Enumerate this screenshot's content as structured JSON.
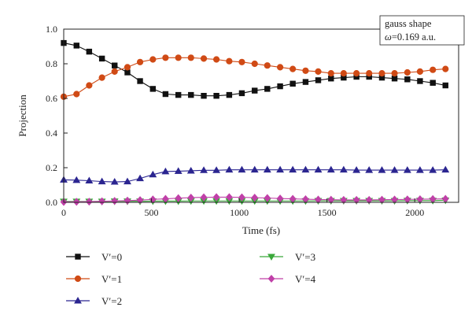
{
  "chart_data": {
    "type": "line",
    "xlabel": "Time (fs)",
    "ylabel": "Projection",
    "xlim": [
      0,
      2250
    ],
    "ylim": [
      0,
      1.0
    ],
    "xticks": [
      0,
      500,
      1000,
      1500,
      2000
    ],
    "xtick_labels": [
      "0",
      "500",
      "1000",
      "1500",
      "2000"
    ],
    "yticks": [
      0.0,
      0.2,
      0.4,
      0.6,
      0.8,
      1.0
    ],
    "ytick_labels": [
      "0.0",
      "0.2",
      "0.4",
      "0.6",
      "0.8",
      "1.0"
    ],
    "annotation": {
      "line1": "gauss shape",
      "line2_symbol": "ω",
      "line2_rest": "=0.169 a.u."
    },
    "legend_position": "below",
    "x": [
      0,
      73,
      145,
      218,
      290,
      363,
      435,
      508,
      580,
      653,
      725,
      798,
      870,
      943,
      1015,
      1088,
      1160,
      1233,
      1305,
      1378,
      1450,
      1523,
      1595,
      1668,
      1740,
      1813,
      1885,
      1958,
      2030,
      2103,
      2175
    ],
    "series": [
      {
        "name": "V′=0",
        "marker": "square",
        "color": "#111111",
        "values": [
          0.92,
          0.905,
          0.87,
          0.83,
          0.79,
          0.75,
          0.7,
          0.655,
          0.625,
          0.62,
          0.62,
          0.615,
          0.615,
          0.62,
          0.63,
          0.645,
          0.655,
          0.67,
          0.685,
          0.695,
          0.705,
          0.715,
          0.72,
          0.725,
          0.725,
          0.72,
          0.715,
          0.71,
          0.7,
          0.69,
          0.675
        ]
      },
      {
        "name": "V′=1",
        "marker": "circle",
        "color": "#d04a15",
        "values": [
          0.61,
          0.625,
          0.675,
          0.72,
          0.755,
          0.78,
          0.81,
          0.825,
          0.835,
          0.835,
          0.835,
          0.83,
          0.825,
          0.815,
          0.81,
          0.8,
          0.79,
          0.78,
          0.77,
          0.76,
          0.755,
          0.745,
          0.745,
          0.745,
          0.745,
          0.745,
          0.745,
          0.75,
          0.755,
          0.765,
          0.77
        ]
      },
      {
        "name": "V′=2",
        "marker": "triangle-up",
        "color": "#2b2590",
        "values": [
          0.13,
          0.128,
          0.125,
          0.12,
          0.118,
          0.12,
          0.138,
          0.16,
          0.178,
          0.18,
          0.182,
          0.185,
          0.185,
          0.188,
          0.188,
          0.188,
          0.188,
          0.188,
          0.188,
          0.188,
          0.188,
          0.188,
          0.188,
          0.186,
          0.186,
          0.186,
          0.186,
          0.186,
          0.186,
          0.186,
          0.188
        ]
      },
      {
        "name": "V′=3",
        "marker": "triangle-down",
        "color": "#3aa83a",
        "values": [
          0.005,
          0.005,
          0.005,
          0.005,
          0.006,
          0.006,
          0.006,
          0.007,
          0.007,
          0.007,
          0.008,
          0.008,
          0.008,
          0.008,
          0.008,
          0.008,
          0.008,
          0.008,
          0.008,
          0.008,
          0.009,
          0.009,
          0.009,
          0.009,
          0.009,
          0.009,
          0.009,
          0.01,
          0.01,
          0.01,
          0.012
        ]
      },
      {
        "name": "V′=4",
        "marker": "diamond",
        "color": "#c040a8",
        "values": [
          0.002,
          0.003,
          0.004,
          0.006,
          0.008,
          0.01,
          0.013,
          0.017,
          0.02,
          0.024,
          0.027,
          0.029,
          0.03,
          0.03,
          0.029,
          0.027,
          0.025,
          0.022,
          0.02,
          0.018,
          0.016,
          0.015,
          0.014,
          0.014,
          0.014,
          0.015,
          0.016,
          0.017,
          0.018,
          0.019,
          0.02
        ]
      }
    ]
  }
}
